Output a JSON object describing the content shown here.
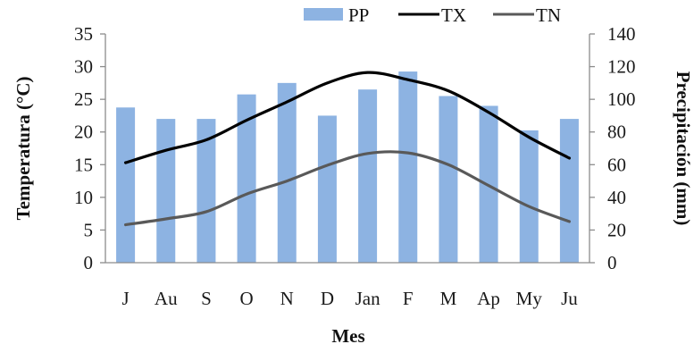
{
  "chart_data": {
    "type": "bar+line",
    "categories": [
      "J",
      "Au",
      "S",
      "O",
      "N",
      "D",
      "Jan",
      "F",
      "M",
      "Ap",
      "My",
      "Ju"
    ],
    "xlabel": "Mes",
    "ylabel_left": "Temperatura (°C)",
    "ylabel_right": "Precipitación (mm)",
    "ylim_left": [
      0,
      35
    ],
    "ylim_right": [
      0,
      140
    ],
    "yticks_left": [
      "0",
      "5",
      "10",
      "15",
      "20",
      "25",
      "30",
      "35"
    ],
    "yticks_right": [
      "0",
      "20",
      "40",
      "60",
      "80",
      "100",
      "120",
      "140"
    ],
    "grid": false,
    "legend_position": "top-right",
    "bars": {
      "name": "PP",
      "axis": "right",
      "color": "#8DB3E2",
      "values": [
        95,
        88,
        88,
        103,
        110,
        90,
        106,
        117,
        102,
        96,
        81,
        88
      ]
    },
    "series": [
      {
        "name": "TX",
        "axis": "left",
        "color": "#000000",
        "values": [
          15.3,
          17.2,
          18.8,
          21.8,
          24.6,
          27.5,
          29.1,
          28.0,
          26.3,
          23.0,
          19.2,
          16.0
        ]
      },
      {
        "name": "TN",
        "axis": "left",
        "color": "#595959",
        "values": [
          5.8,
          6.7,
          7.8,
          10.5,
          12.5,
          14.9,
          16.7,
          16.8,
          15.0,
          11.8,
          8.6,
          6.3
        ]
      }
    ]
  }
}
